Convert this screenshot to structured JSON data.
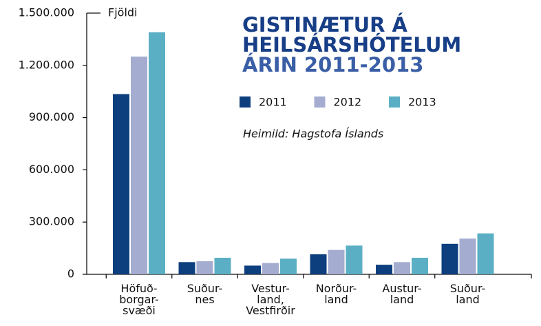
{
  "chart_data": {
    "type": "bar",
    "title_lines": [
      "GISTINÆTUR Á",
      "HEILSÁRSHÓTELUM",
      "ÁRIN 2011-2013"
    ],
    "y_label": "Fjöldi",
    "source": "Heimild: Hagstofa Íslands",
    "categories": [
      "Höfuð-\nborgar-\nsvæði",
      "Suður-\nnes",
      "Vestur-\nland,\nVestfirðir",
      "Norður-\nland",
      "Austur-\nland",
      "Suður-\nland"
    ],
    "series": [
      {
        "name": "2011",
        "color": "#0d3f7f",
        "values": [
          1035000,
          70000,
          50000,
          115000,
          55000,
          175000
        ]
      },
      {
        "name": "2012",
        "color": "#a4acd0",
        "values": [
          1250000,
          75000,
          65000,
          140000,
          70000,
          205000
        ]
      },
      {
        "name": "2013",
        "color": "#5bafc4",
        "values": [
          1390000,
          95000,
          90000,
          165000,
          95000,
          235000
        ]
      }
    ],
    "ylim": [
      0,
      1500000
    ],
    "yticks": [
      0,
      {
        "value": 300000,
        "label": "300.000"
      },
      {
        "value": 600000,
        "label": "600.000"
      },
      {
        "value": 900000,
        "label": "900.000"
      },
      {
        "value": 1200000,
        "label": "1.200.000"
      },
      {
        "value": 1500000,
        "label": "1.500.000"
      }
    ],
    "grid": false,
    "legend": "top-right"
  }
}
